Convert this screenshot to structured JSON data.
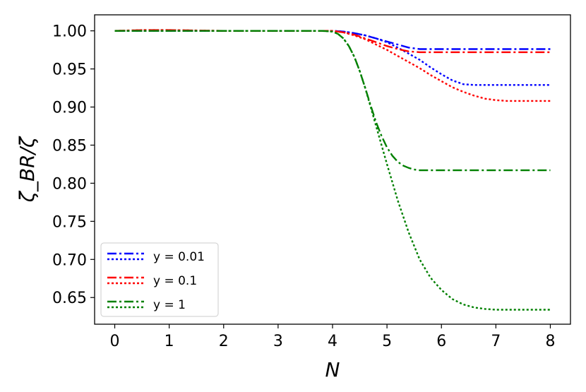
{
  "chart_data": {
    "type": "line",
    "title": "",
    "xlabel": "N",
    "ylabel": "ζ_BR/ζ",
    "xlim": [
      -0.37,
      8.37
    ],
    "ylim": [
      0.615,
      1.021
    ],
    "xticks": [
      0,
      1,
      2,
      3,
      4,
      5,
      6,
      7,
      8
    ],
    "yticks": [
      0.65,
      0.7,
      0.75,
      0.8,
      0.85,
      0.9,
      0.95,
      1.0
    ],
    "xtick_labels": [
      "0",
      "1",
      "2",
      "3",
      "4",
      "5",
      "6",
      "7",
      "8"
    ],
    "ytick_labels": [
      "0.65",
      "0.70",
      "0.75",
      "0.80",
      "0.85",
      "0.90",
      "0.95",
      "1.00"
    ],
    "grid": false,
    "legend_position": "lower-left",
    "legend": [
      {
        "label": "y = 0.01",
        "color": "#0000ff"
      },
      {
        "label": "y = 0.1",
        "color": "#ff0000"
      },
      {
        "label": "y = 1",
        "color": "#008000"
      }
    ],
    "series": [
      {
        "group": 0,
        "style": "dashdot",
        "color": "#0000ff",
        "x": [
          0,
          1,
          2,
          3,
          4,
          4.2,
          4.4,
          4.6,
          4.8,
          5.0,
          5.2,
          5.4,
          5.6,
          6.0,
          6.5,
          7.0,
          8.0
        ],
        "y": [
          1.0,
          1.0,
          1.0,
          1.0,
          1.0,
          0.999,
          0.997,
          0.994,
          0.99,
          0.986,
          0.982,
          0.978,
          0.976,
          0.976,
          0.976,
          0.976,
          0.976
        ]
      },
      {
        "group": 0,
        "style": "dotted",
        "color": "#0000ff",
        "x": [
          0,
          1,
          2,
          3,
          4,
          4.2,
          4.4,
          4.6,
          4.8,
          5.0,
          5.2,
          5.4,
          5.6,
          5.8,
          6.0,
          6.2,
          6.4,
          6.6,
          7.0,
          8.0
        ],
        "y": [
          1.0,
          1.0,
          1.0,
          1.0,
          1.0,
          0.999,
          0.997,
          0.994,
          0.99,
          0.985,
          0.978,
          0.97,
          0.962,
          0.952,
          0.943,
          0.935,
          0.93,
          0.929,
          0.929,
          0.929
        ]
      },
      {
        "group": 1,
        "style": "dashdot",
        "color": "#ff0000",
        "x": [
          0,
          0.5,
          1,
          2,
          3,
          4,
          4.2,
          4.4,
          4.6,
          4.8,
          5.0,
          5.2,
          5.4,
          5.6,
          6.0,
          7.0,
          8.0
        ],
        "y": [
          1.0,
          1.001,
          1.001,
          1.0,
          1.0,
          1.0,
          0.998,
          0.995,
          0.99,
          0.985,
          0.98,
          0.976,
          0.973,
          0.972,
          0.972,
          0.972,
          0.972
        ]
      },
      {
        "group": 1,
        "style": "dotted",
        "color": "#ff0000",
        "x": [
          0,
          0.5,
          1,
          2,
          3,
          4,
          4.2,
          4.4,
          4.6,
          4.8,
          5.0,
          5.2,
          5.4,
          5.6,
          5.8,
          6.0,
          6.2,
          6.4,
          6.6,
          6.8,
          7.0,
          7.2,
          7.4,
          8.0
        ],
        "y": [
          1.0,
          1.001,
          1.001,
          1.0,
          1.0,
          1.0,
          0.998,
          0.994,
          0.989,
          0.982,
          0.975,
          0.967,
          0.959,
          0.951,
          0.942,
          0.934,
          0.926,
          0.92,
          0.915,
          0.911,
          0.909,
          0.908,
          0.908,
          0.908
        ]
      },
      {
        "group": 2,
        "style": "dashdot",
        "color": "#008000",
        "x": [
          0,
          1,
          2,
          3,
          3.8,
          4.0,
          4.1,
          4.2,
          4.3,
          4.4,
          4.5,
          4.6,
          4.7,
          4.8,
          4.9,
          5.0,
          5.1,
          5.2,
          5.3,
          5.4,
          5.5,
          5.6,
          5.7,
          5.8,
          6.0,
          7.0,
          8.0
        ],
        "y": [
          1.0,
          1.0,
          1.0,
          1.0,
          1.0,
          0.999,
          0.996,
          0.99,
          0.98,
          0.966,
          0.947,
          0.925,
          0.902,
          0.88,
          0.862,
          0.847,
          0.836,
          0.828,
          0.823,
          0.82,
          0.818,
          0.817,
          0.817,
          0.817,
          0.817,
          0.817,
          0.817
        ]
      },
      {
        "group": 2,
        "style": "dotted",
        "color": "#008000",
        "x": [
          0,
          1,
          2,
          3,
          3.8,
          4.0,
          4.1,
          4.2,
          4.3,
          4.4,
          4.5,
          4.6,
          4.7,
          4.8,
          4.9,
          5.0,
          5.2,
          5.4,
          5.6,
          5.8,
          6.0,
          6.2,
          6.4,
          6.6,
          6.8,
          7.0,
          7.2,
          7.5,
          8.0
        ],
        "y": [
          1.0,
          1.0,
          1.0,
          1.0,
          1.0,
          0.999,
          0.996,
          0.99,
          0.98,
          0.966,
          0.947,
          0.925,
          0.9,
          0.875,
          0.85,
          0.825,
          0.777,
          0.735,
          0.7,
          0.676,
          0.66,
          0.648,
          0.641,
          0.637,
          0.635,
          0.634,
          0.634,
          0.634,
          0.634
        ]
      }
    ]
  }
}
